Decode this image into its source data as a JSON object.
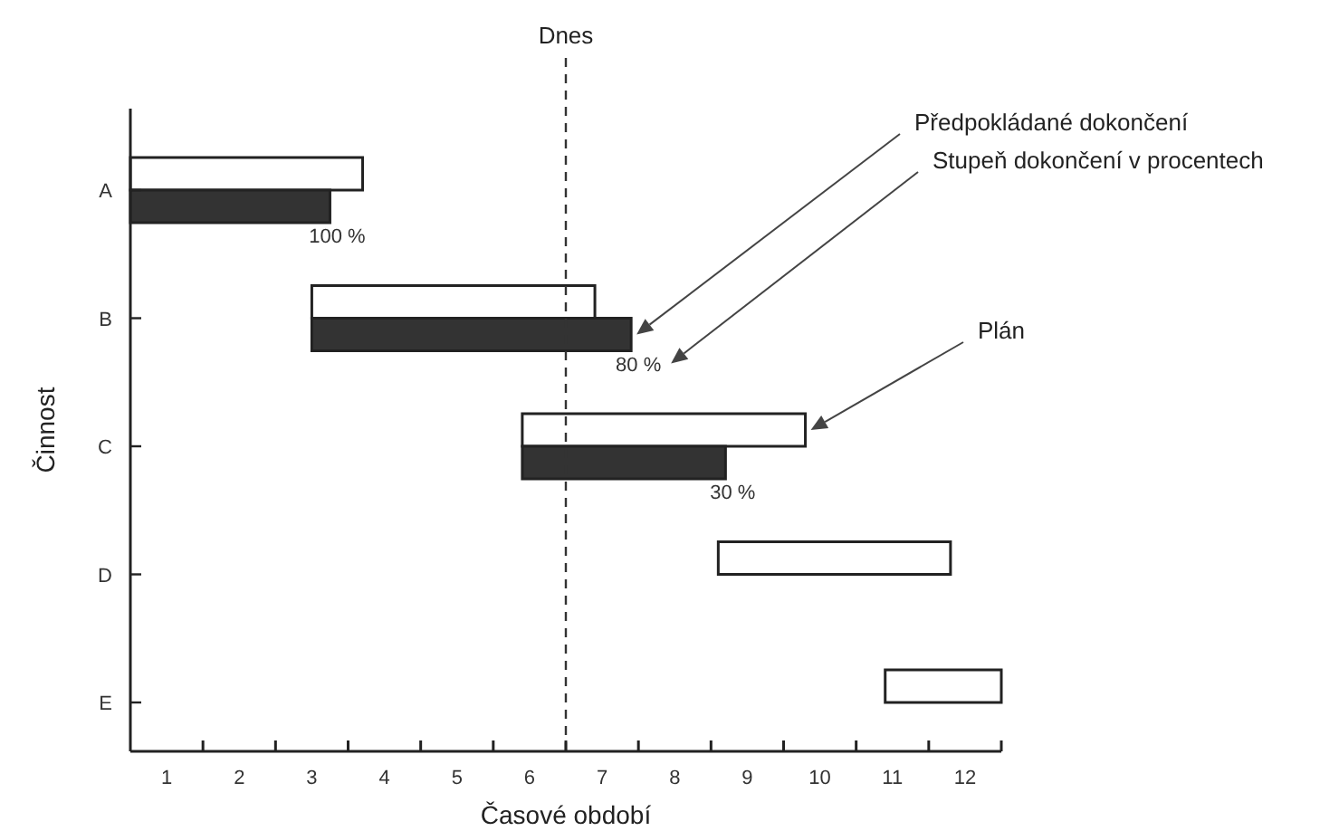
{
  "chart_data": {
    "type": "bar",
    "orientation": "horizontal",
    "xlabel": "Časové období",
    "ylabel": "Činnost",
    "categories": [
      "A",
      "B",
      "C",
      "D",
      "E"
    ],
    "series": [
      {
        "color": "#ffffff",
        "base": [
          0,
          2.5,
          5.4,
          8.1,
          10.4
        ],
        "values": [
          3.2,
          3.9,
          3.9,
          3.2,
          1.6
        ]
      },
      {
        "color": "#333333",
        "base": [
          0,
          2.5,
          5.4,
          null,
          null
        ],
        "values": [
          2.75,
          4.4,
          2.8,
          null,
          null
        ]
      }
    ],
    "xlim": [
      0,
      12
    ],
    "xticks": [
      {
        "value": 0.5,
        "label": "1"
      },
      {
        "value": 1,
        "label": null
      },
      {
        "value": 1.5,
        "label": "2"
      },
      {
        "value": 2,
        "label": null
      },
      {
        "value": 2.5,
        "label": "3"
      },
      {
        "value": 3,
        "label": null
      },
      {
        "value": 3.5,
        "label": "4"
      },
      {
        "value": 4,
        "label": null
      },
      {
        "value": 4.5,
        "label": "5"
      },
      {
        "value": 5,
        "label": null
      },
      {
        "value": 5.5,
        "label": "6"
      },
      {
        "value": 6,
        "label": null
      },
      {
        "value": 6.5,
        "label": "7"
      },
      {
        "value": 7,
        "label": null
      },
      {
        "value": 7.5,
        "label": "8"
      },
      {
        "value": 8,
        "label": null
      },
      {
        "value": 8.5,
        "label": "9"
      },
      {
        "value": 9,
        "label": null
      },
      {
        "value": 9.5,
        "label": "10"
      },
      {
        "value": 10,
        "label": null
      },
      {
        "value": 10.5,
        "label": "11"
      },
      {
        "value": 11,
        "label": null
      },
      {
        "value": 11.5,
        "label": "12"
      },
      {
        "value": 12,
        "label": null
      }
    ],
    "ref_lines": [
      {
        "axis": "x",
        "value": 6,
        "label": "Dnes",
        "line_style": "dashed"
      }
    ],
    "annotations": [
      "Předpokládané dokončení",
      "Stupeň dokončení v procentech",
      "Plán",
      {
        "text": "100 %",
        "x": 2.75,
        "y": "A"
      },
      {
        "text": "80 %",
        "x": 6.9,
        "y": "B"
      },
      {
        "text": "30 %",
        "x": 8.2,
        "y": "C"
      }
    ]
  }
}
